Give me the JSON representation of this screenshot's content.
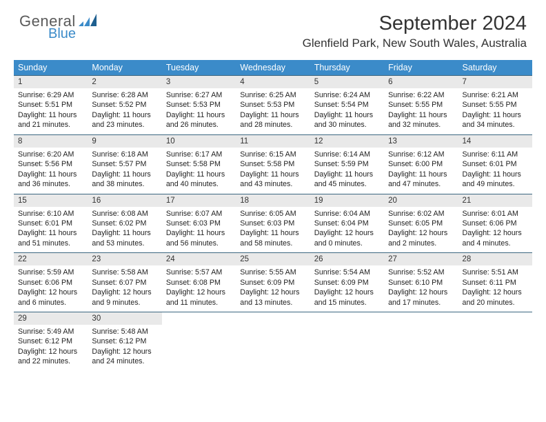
{
  "logo": {
    "word1": "General",
    "word2": "Blue"
  },
  "title": "September 2024",
  "location": "Glenfield Park, New South Wales, Australia",
  "colors": {
    "header_bg": "#3b8bc9",
    "row_border": "#3b6680",
    "date_bg": "#e9e9e9",
    "logo_blue": "#3b8bc9",
    "logo_gray": "#5a5a5a"
  },
  "day_headers": [
    "Sunday",
    "Monday",
    "Tuesday",
    "Wednesday",
    "Thursday",
    "Friday",
    "Saturday"
  ],
  "weeks": [
    [
      {
        "n": "1",
        "sr": "Sunrise: 6:29 AM",
        "ss": "Sunset: 5:51 PM",
        "dl1": "Daylight: 11 hours",
        "dl2": "and 21 minutes."
      },
      {
        "n": "2",
        "sr": "Sunrise: 6:28 AM",
        "ss": "Sunset: 5:52 PM",
        "dl1": "Daylight: 11 hours",
        "dl2": "and 23 minutes."
      },
      {
        "n": "3",
        "sr": "Sunrise: 6:27 AM",
        "ss": "Sunset: 5:53 PM",
        "dl1": "Daylight: 11 hours",
        "dl2": "and 26 minutes."
      },
      {
        "n": "4",
        "sr": "Sunrise: 6:25 AM",
        "ss": "Sunset: 5:53 PM",
        "dl1": "Daylight: 11 hours",
        "dl2": "and 28 minutes."
      },
      {
        "n": "5",
        "sr": "Sunrise: 6:24 AM",
        "ss": "Sunset: 5:54 PM",
        "dl1": "Daylight: 11 hours",
        "dl2": "and 30 minutes."
      },
      {
        "n": "6",
        "sr": "Sunrise: 6:22 AM",
        "ss": "Sunset: 5:55 PM",
        "dl1": "Daylight: 11 hours",
        "dl2": "and 32 minutes."
      },
      {
        "n": "7",
        "sr": "Sunrise: 6:21 AM",
        "ss": "Sunset: 5:55 PM",
        "dl1": "Daylight: 11 hours",
        "dl2": "and 34 minutes."
      }
    ],
    [
      {
        "n": "8",
        "sr": "Sunrise: 6:20 AM",
        "ss": "Sunset: 5:56 PM",
        "dl1": "Daylight: 11 hours",
        "dl2": "and 36 minutes."
      },
      {
        "n": "9",
        "sr": "Sunrise: 6:18 AM",
        "ss": "Sunset: 5:57 PM",
        "dl1": "Daylight: 11 hours",
        "dl2": "and 38 minutes."
      },
      {
        "n": "10",
        "sr": "Sunrise: 6:17 AM",
        "ss": "Sunset: 5:58 PM",
        "dl1": "Daylight: 11 hours",
        "dl2": "and 40 minutes."
      },
      {
        "n": "11",
        "sr": "Sunrise: 6:15 AM",
        "ss": "Sunset: 5:58 PM",
        "dl1": "Daylight: 11 hours",
        "dl2": "and 43 minutes."
      },
      {
        "n": "12",
        "sr": "Sunrise: 6:14 AM",
        "ss": "Sunset: 5:59 PM",
        "dl1": "Daylight: 11 hours",
        "dl2": "and 45 minutes."
      },
      {
        "n": "13",
        "sr": "Sunrise: 6:12 AM",
        "ss": "Sunset: 6:00 PM",
        "dl1": "Daylight: 11 hours",
        "dl2": "and 47 minutes."
      },
      {
        "n": "14",
        "sr": "Sunrise: 6:11 AM",
        "ss": "Sunset: 6:01 PM",
        "dl1": "Daylight: 11 hours",
        "dl2": "and 49 minutes."
      }
    ],
    [
      {
        "n": "15",
        "sr": "Sunrise: 6:10 AM",
        "ss": "Sunset: 6:01 PM",
        "dl1": "Daylight: 11 hours",
        "dl2": "and 51 minutes."
      },
      {
        "n": "16",
        "sr": "Sunrise: 6:08 AM",
        "ss": "Sunset: 6:02 PM",
        "dl1": "Daylight: 11 hours",
        "dl2": "and 53 minutes."
      },
      {
        "n": "17",
        "sr": "Sunrise: 6:07 AM",
        "ss": "Sunset: 6:03 PM",
        "dl1": "Daylight: 11 hours",
        "dl2": "and 56 minutes."
      },
      {
        "n": "18",
        "sr": "Sunrise: 6:05 AM",
        "ss": "Sunset: 6:03 PM",
        "dl1": "Daylight: 11 hours",
        "dl2": "and 58 minutes."
      },
      {
        "n": "19",
        "sr": "Sunrise: 6:04 AM",
        "ss": "Sunset: 6:04 PM",
        "dl1": "Daylight: 12 hours",
        "dl2": "and 0 minutes."
      },
      {
        "n": "20",
        "sr": "Sunrise: 6:02 AM",
        "ss": "Sunset: 6:05 PM",
        "dl1": "Daylight: 12 hours",
        "dl2": "and 2 minutes."
      },
      {
        "n": "21",
        "sr": "Sunrise: 6:01 AM",
        "ss": "Sunset: 6:06 PM",
        "dl1": "Daylight: 12 hours",
        "dl2": "and 4 minutes."
      }
    ],
    [
      {
        "n": "22",
        "sr": "Sunrise: 5:59 AM",
        "ss": "Sunset: 6:06 PM",
        "dl1": "Daylight: 12 hours",
        "dl2": "and 6 minutes."
      },
      {
        "n": "23",
        "sr": "Sunrise: 5:58 AM",
        "ss": "Sunset: 6:07 PM",
        "dl1": "Daylight: 12 hours",
        "dl2": "and 9 minutes."
      },
      {
        "n": "24",
        "sr": "Sunrise: 5:57 AM",
        "ss": "Sunset: 6:08 PM",
        "dl1": "Daylight: 12 hours",
        "dl2": "and 11 minutes."
      },
      {
        "n": "25",
        "sr": "Sunrise: 5:55 AM",
        "ss": "Sunset: 6:09 PM",
        "dl1": "Daylight: 12 hours",
        "dl2": "and 13 minutes."
      },
      {
        "n": "26",
        "sr": "Sunrise: 5:54 AM",
        "ss": "Sunset: 6:09 PM",
        "dl1": "Daylight: 12 hours",
        "dl2": "and 15 minutes."
      },
      {
        "n": "27",
        "sr": "Sunrise: 5:52 AM",
        "ss": "Sunset: 6:10 PM",
        "dl1": "Daylight: 12 hours",
        "dl2": "and 17 minutes."
      },
      {
        "n": "28",
        "sr": "Sunrise: 5:51 AM",
        "ss": "Sunset: 6:11 PM",
        "dl1": "Daylight: 12 hours",
        "dl2": "and 20 minutes."
      }
    ],
    [
      {
        "n": "29",
        "sr": "Sunrise: 5:49 AM",
        "ss": "Sunset: 6:12 PM",
        "dl1": "Daylight: 12 hours",
        "dl2": "and 22 minutes."
      },
      {
        "n": "30",
        "sr": "Sunrise: 5:48 AM",
        "ss": "Sunset: 6:12 PM",
        "dl1": "Daylight: 12 hours",
        "dl2": "and 24 minutes."
      },
      null,
      null,
      null,
      null,
      null
    ]
  ]
}
